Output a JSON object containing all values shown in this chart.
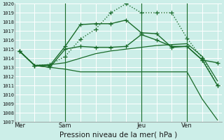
{
  "bg_color": "#cceee8",
  "grid_color": "#b8ddd8",
  "line_color": "#1a6b2a",
  "ylabel_min": 1007,
  "ylabel_max": 1020,
  "xlabel": "Pression niveau de la mer( hPa )",
  "xtick_labels": [
    "Mer",
    "Sam",
    "Jeu",
    "Ven"
  ],
  "xtick_positions": [
    0,
    3,
    8,
    11
  ],
  "lines": [
    {
      "x": [
        0,
        1,
        2,
        3,
        4,
        5,
        6,
        7,
        8,
        9,
        10,
        11,
        12,
        13
      ],
      "y": [
        1014.8,
        1013.2,
        1013.2,
        1015.3,
        1017.7,
        1017.8,
        1017.8,
        1018.2,
        1016.8,
        1016.7,
        1015.2,
        1015.3,
        1013.8,
        1013.5
      ],
      "style": "-",
      "marker": "+",
      "linewidth": 1.0,
      "markersize": 4
    },
    {
      "x": [
        0,
        1,
        2,
        3,
        4,
        5,
        6,
        7,
        8,
        9,
        10,
        11,
        12,
        13
      ],
      "y": [
        1014.8,
        1013.2,
        1013.3,
        1014.2,
        1016.1,
        1017.2,
        1019.0,
        1020.0,
        1019.0,
        1019.0,
        1019.0,
        1016.2,
        1014.0,
        1011.0
      ],
      "style": ":",
      "marker": "+",
      "linewidth": 1.0,
      "markersize": 4
    },
    {
      "x": [
        0,
        1,
        2,
        3,
        4,
        5,
        6,
        7,
        8,
        9,
        10,
        11,
        12,
        13
      ],
      "y": [
        1014.8,
        1013.2,
        1013.3,
        1013.5,
        1014.0,
        1014.5,
        1014.8,
        1015.0,
        1015.2,
        1015.4,
        1015.5,
        1015.6,
        1014.2,
        1011.5
      ],
      "style": "-",
      "marker": null,
      "linewidth": 0.9,
      "markersize": 0
    },
    {
      "x": [
        0,
        1,
        2,
        3,
        4,
        5,
        6,
        7,
        8,
        9,
        10,
        11,
        12,
        13
      ],
      "y": [
        1014.8,
        1013.2,
        1013.0,
        1012.8,
        1012.5,
        1012.5,
        1012.5,
        1012.5,
        1012.5,
        1012.5,
        1012.5,
        1012.5,
        1009.5,
        1007.2
      ],
      "style": "-",
      "marker": null,
      "linewidth": 0.9,
      "markersize": 0
    },
    {
      "x": [
        0,
        1,
        2,
        3,
        4,
        5,
        6,
        7,
        8,
        9,
        10,
        11,
        12,
        13
      ],
      "y": [
        1014.8,
        1013.2,
        1013.0,
        1015.0,
        1015.3,
        1015.2,
        1015.2,
        1015.3,
        1016.6,
        1016.0,
        1015.3,
        1015.3,
        1013.8,
        1011.0
      ],
      "style": "-",
      "marker": "+",
      "linewidth": 1.0,
      "markersize": 4
    }
  ],
  "vlines": [
    3,
    8,
    11
  ],
  "xlabel_fontsize": 7.5,
  "ytick_fontsize": 5.0,
  "xtick_fontsize": 6.0
}
